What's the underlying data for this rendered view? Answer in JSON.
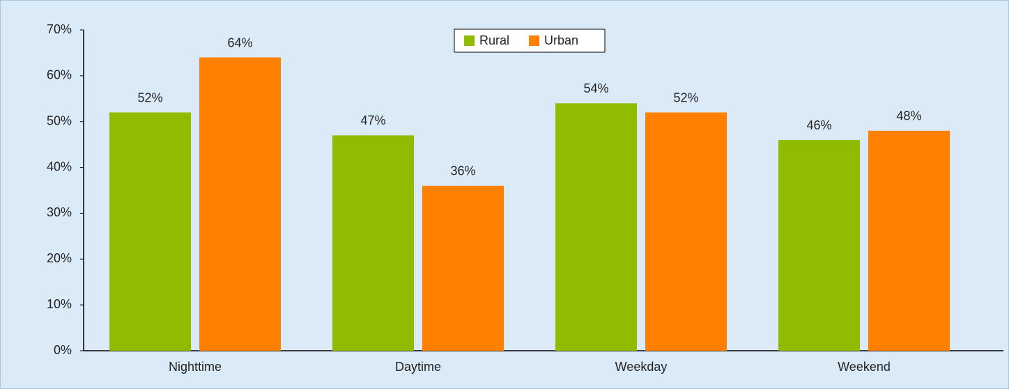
{
  "chart_data": {
    "type": "bar",
    "categories": [
      "Nighttime",
      "Daytime",
      "Weekday",
      "Weekend"
    ],
    "series": [
      {
        "name": "Rural",
        "color": "#8fbc00",
        "values": [
          52,
          47,
          54,
          46
        ],
        "value_labels": [
          "52%",
          "47%",
          "54%",
          "46%"
        ]
      },
      {
        "name": "Urban",
        "color": "#ff8000",
        "values": [
          64,
          36,
          52,
          48
        ],
        "value_labels": [
          "64%",
          "36%",
          "52%",
          "48%"
        ]
      }
    ],
    "ylim": [
      0,
      70
    ],
    "yticks": [
      {
        "value": 0,
        "label": "0%"
      },
      {
        "value": 10,
        "label": "10%"
      },
      {
        "value": 20,
        "label": "20%"
      },
      {
        "value": 30,
        "label": "30%"
      },
      {
        "value": 40,
        "label": "40%"
      },
      {
        "value": 50,
        "label": "50%"
      },
      {
        "value": 60,
        "label": "60%"
      },
      {
        "value": 70,
        "label": "70%"
      }
    ],
    "legend": "top",
    "grid": false
  }
}
